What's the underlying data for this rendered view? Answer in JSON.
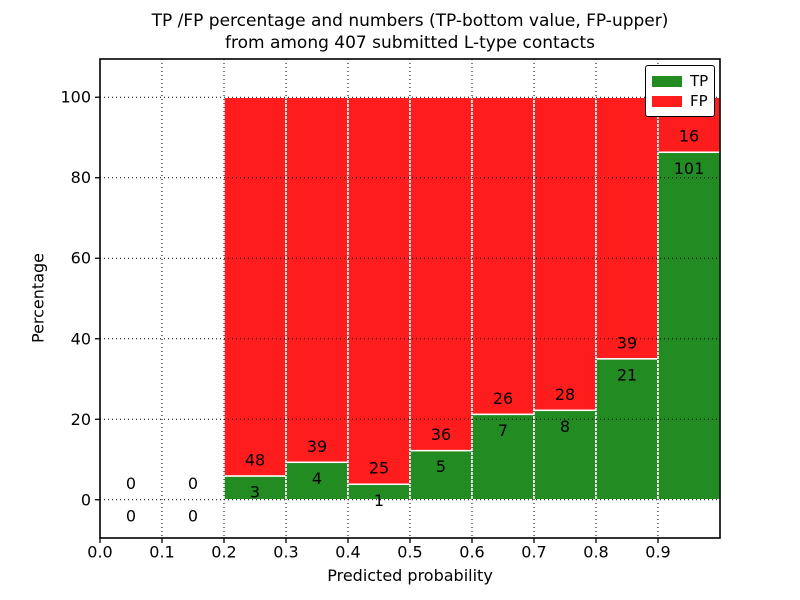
{
  "chart_data": {
    "type": "bar",
    "subtype": "stacked-percentage-histogram",
    "title_line1": "TP /FP percentage and numbers (TP-bottom value, FP-upper)",
    "title_line2": "from among 407 submitted L-type contacts",
    "xlabel": "Predicted probability",
    "ylabel": "Percentage",
    "xlim": [
      0.0,
      1.0
    ],
    "ylim": [
      -9.5,
      109.5
    ],
    "x_ticks": [
      {
        "value": 0.0,
        "label": "0.0"
      },
      {
        "value": 0.1,
        "label": "0.1"
      },
      {
        "value": 0.2,
        "label": "0.2"
      },
      {
        "value": 0.3,
        "label": "0.3"
      },
      {
        "value": 0.4,
        "label": "0.4"
      },
      {
        "value": 0.5,
        "label": "0.5"
      },
      {
        "value": 0.6,
        "label": "0.6"
      },
      {
        "value": 0.7,
        "label": "0.7"
      },
      {
        "value": 0.8,
        "label": "0.8"
      },
      {
        "value": 0.9,
        "label": "0.9"
      }
    ],
    "y_ticks": [
      {
        "value": 0,
        "label": "0"
      },
      {
        "value": 20,
        "label": "20"
      },
      {
        "value": 40,
        "label": "40"
      },
      {
        "value": 60,
        "label": "60"
      },
      {
        "value": 80,
        "label": "80"
      },
      {
        "value": 100,
        "label": "100"
      }
    ],
    "grid": {
      "style": "dotted",
      "color": "#000000",
      "drawn_over_bars": true
    },
    "bin_width": 0.1,
    "bin_starts": [
      0.0,
      0.1,
      0.2,
      0.3,
      0.4,
      0.5,
      0.6,
      0.7,
      0.8,
      0.9
    ],
    "series": [
      {
        "name": "TP",
        "color": "#228b22",
        "stack_position": "bottom",
        "values": [
          0,
          0,
          3,
          4,
          1,
          5,
          7,
          8,
          21,
          101
        ]
      },
      {
        "name": "FP",
        "color": "#ff1c1c",
        "stack_position": "top",
        "values": [
          0,
          0,
          48,
          39,
          25,
          36,
          26,
          28,
          39,
          16
        ]
      }
    ],
    "bar_edge_color": "#ffffff",
    "total_contacts": 407,
    "legend": {
      "position": "upper-right",
      "entries": [
        {
          "label": "TP",
          "color": "#228b22"
        },
        {
          "label": "FP",
          "color": "#ff1c1c"
        }
      ]
    }
  }
}
